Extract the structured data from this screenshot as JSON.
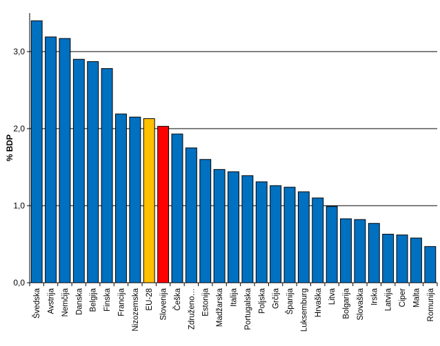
{
  "chart_data": {
    "type": "bar",
    "title": "",
    "xlabel": "",
    "ylabel": "% BDP",
    "ylim": [
      0,
      3.5
    ],
    "yticks": [
      "0,0",
      "1,0",
      "2,0",
      "3,0"
    ],
    "grid": true,
    "categories": [
      "Švedska",
      "Avstrija",
      "Nemčija",
      "Danska",
      "Belgija",
      "Finska",
      "Francija",
      "Nizozemska",
      "EU-28",
      "Slovenija",
      "Češka",
      "Združeno…",
      "Estonija",
      "Madžarska",
      "Italija",
      "Portugalska",
      "Poljska",
      "Grčija",
      "Španija",
      "Luksemburg",
      "Hrvaška",
      "Litva",
      "Bolgarija",
      "Slovaška",
      "Irska",
      "Latvija",
      "Ciper",
      "Malta",
      "Romunija"
    ],
    "values": [
      3.4,
      3.19,
      3.17,
      2.9,
      2.87,
      2.78,
      2.19,
      2.15,
      2.13,
      2.03,
      1.93,
      1.75,
      1.6,
      1.47,
      1.44,
      1.39,
      1.31,
      1.26,
      1.24,
      1.18,
      1.1,
      0.99,
      0.83,
      0.82,
      0.77,
      0.63,
      0.62,
      0.58,
      0.47
    ],
    "colors": {
      "default": "#0070C0",
      "EU-28": "#FFC000",
      "Slovenija": "#FF0000",
      "grid": "#000000",
      "bar_border": "#000000"
    }
  }
}
